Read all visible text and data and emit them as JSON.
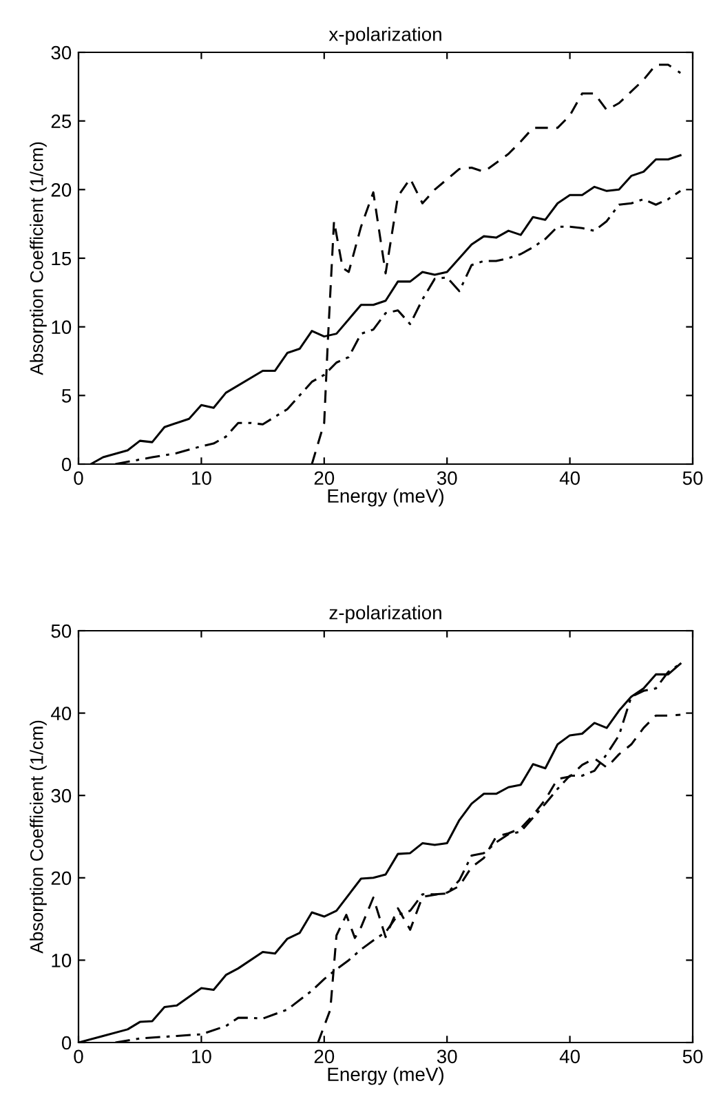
{
  "chart_data": [
    {
      "type": "line",
      "title": "x-polarization",
      "xlabel": "Energy (meV)",
      "ylabel": "Absorption Coefficient (1/cm)",
      "xlim": [
        0,
        50
      ],
      "ylim": [
        0,
        30
      ],
      "xticks": [
        0,
        10,
        20,
        30,
        40,
        50
      ],
      "yticks": [
        0,
        5,
        10,
        15,
        20,
        25,
        30
      ],
      "grid": false,
      "legend": false,
      "series": [
        {
          "color": "#000000",
          "line_style": "solid",
          "x": [
            1,
            2,
            4,
            5,
            6,
            7,
            9,
            10,
            11,
            12,
            15,
            16,
            17,
            18,
            19,
            20,
            21,
            23,
            24,
            25,
            26,
            27,
            28,
            29,
            30,
            32,
            33,
            34,
            35,
            36,
            37,
            38,
            39,
            40,
            41,
            42,
            43,
            44,
            45,
            46,
            47,
            48,
            49
          ],
          "values": [
            0,
            0.5,
            1,
            1.7,
            1.6,
            2.7,
            3.3,
            4.3,
            4.1,
            5.2,
            6.8,
            6.8,
            8.1,
            8.4,
            9.7,
            9.3,
            9.5,
            11.6,
            11.6,
            11.9,
            13.3,
            13.3,
            14,
            13.8,
            14,
            16,
            16.6,
            16.5,
            17,
            16.7,
            18,
            17.8,
            19,
            19.6,
            19.6,
            20.2,
            19.9,
            20,
            21,
            21.3,
            22.2,
            22.2,
            22.5
          ]
        },
        {
          "color": "#000000",
          "line_style": "dashed",
          "x": [
            19,
            20,
            20.3,
            20.8,
            21.5,
            22,
            23,
            24,
            25,
            26,
            27,
            28,
            29,
            31,
            32,
            33,
            35,
            36,
            37,
            38,
            39,
            40,
            41,
            42,
            43,
            44,
            46,
            47,
            48,
            49
          ],
          "values": [
            0,
            3,
            9,
            17.7,
            14.3,
            14,
            17.3,
            19.8,
            13.9,
            19.5,
            20.8,
            19,
            20,
            21.5,
            21.6,
            21.3,
            22.6,
            23.5,
            24.5,
            24.5,
            24.5,
            25.4,
            27,
            27,
            25.8,
            26.3,
            28,
            29.1,
            29.1,
            28.5
          ]
        },
        {
          "color": "#000000",
          "line_style": "dashdot",
          "x": [
            3,
            6,
            8,
            10,
            11,
            12,
            13,
            14,
            15,
            17,
            18,
            19,
            20,
            21,
            22,
            23,
            24,
            25,
            26,
            27,
            28,
            29,
            30,
            31,
            32,
            33,
            34,
            35,
            36,
            37,
            38,
            39,
            40,
            41,
            42,
            43,
            44,
            45,
            46,
            47,
            48,
            49
          ],
          "values": [
            0,
            0.5,
            0.8,
            1.3,
            1.5,
            2,
            3,
            3,
            2.9,
            4,
            5,
            6,
            6.5,
            7.4,
            7.8,
            9.5,
            9.8,
            11,
            11.2,
            10.2,
            12,
            13.5,
            13.6,
            12.6,
            14.5,
            14.8,
            14.8,
            15,
            15.3,
            15.8,
            16.4,
            17.3,
            17.3,
            17.2,
            17,
            17.7,
            18.9,
            19,
            19.3,
            18.9,
            19.3,
            19.9
          ]
        }
      ]
    },
    {
      "type": "line",
      "title": "z-polarization",
      "xlabel": "Energy (meV)",
      "ylabel": "Absorption Coefficient (1/cm)",
      "xlim": [
        0,
        50
      ],
      "ylim": [
        0,
        50
      ],
      "xticks": [
        0,
        10,
        20,
        30,
        40,
        50
      ],
      "yticks": [
        0,
        10,
        20,
        30,
        40,
        50
      ],
      "grid": false,
      "legend": false,
      "series": [
        {
          "color": "#000000",
          "line_style": "solid",
          "x": [
            0,
            2,
            4,
            5,
            6,
            7,
            8,
            10,
            11,
            12,
            13,
            15,
            16,
            17,
            18,
            19,
            20,
            21,
            23,
            24,
            25,
            26,
            27,
            28,
            29,
            30,
            31,
            32,
            33,
            34,
            35,
            36,
            37,
            38,
            39,
            40,
            41,
            42,
            43,
            44,
            45,
            46,
            47,
            48,
            49
          ],
          "values": [
            0,
            0.8,
            1.6,
            2.5,
            2.6,
            4.3,
            4.5,
            6.6,
            6.4,
            8.2,
            9,
            11,
            10.8,
            12.6,
            13.3,
            15.8,
            15.3,
            16,
            19.9,
            20,
            20.4,
            22.9,
            23,
            24.2,
            24,
            24.2,
            27,
            29,
            30.2,
            30.2,
            31,
            31.3,
            33.8,
            33.3,
            36.2,
            37.3,
            37.5,
            38.8,
            38.2,
            40.3,
            42,
            43,
            44.7,
            44.7,
            46
          ]
        },
        {
          "color": "#000000",
          "line_style": "dashed",
          "x": [
            19.5,
            20.5,
            21,
            21.8,
            22.5,
            23,
            24,
            25,
            26,
            27,
            28,
            30,
            31,
            32,
            33,
            34,
            35,
            36,
            37,
            38,
            39,
            40,
            41,
            42,
            43,
            44,
            45,
            46,
            47,
            48,
            49
          ],
          "values": [
            0,
            4,
            13,
            15.5,
            12.7,
            14,
            17.6,
            12.8,
            16.3,
            13.7,
            17.7,
            18.2,
            19,
            21.3,
            22.4,
            25,
            25.4,
            26,
            27.6,
            29.5,
            32,
            32.3,
            33.7,
            34.5,
            33.4,
            35,
            36.2,
            38.2,
            39.7,
            39.7,
            39.8
          ]
        },
        {
          "color": "#000000",
          "line_style": "dashdot",
          "x": [
            3,
            5,
            8,
            10,
            12,
            13,
            14,
            15,
            17,
            19,
            20,
            21,
            22,
            23,
            24,
            25,
            26,
            27,
            28,
            29,
            30,
            31,
            32,
            33,
            34,
            35,
            36,
            37,
            38,
            39,
            40,
            41,
            42,
            43,
            44,
            45,
            46,
            47,
            48,
            49
          ],
          "values": [
            0,
            0.5,
            0.8,
            1,
            2,
            3,
            3,
            2.9,
            4,
            6.3,
            7.7,
            8.9,
            10,
            11.3,
            12.4,
            13.4,
            15.5,
            16,
            18,
            18,
            18.1,
            19.7,
            22.7,
            23,
            24.3,
            25.3,
            25.6,
            27.3,
            29,
            30.8,
            32.4,
            32.4,
            33,
            35,
            37.3,
            42,
            42.7,
            43,
            45,
            46
          ]
        }
      ]
    }
  ]
}
